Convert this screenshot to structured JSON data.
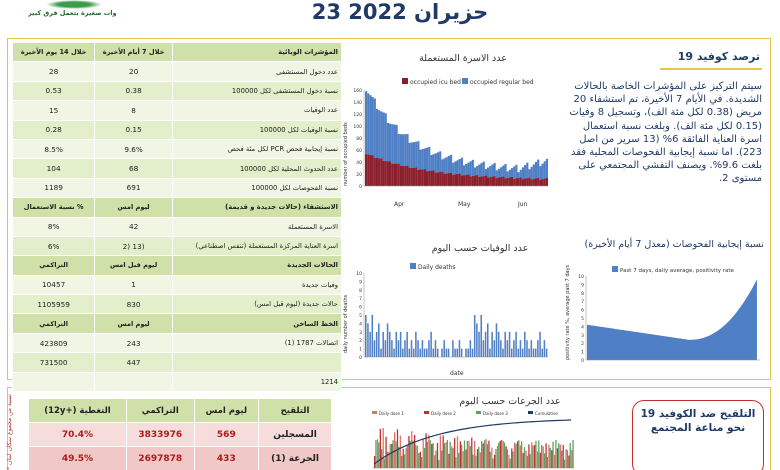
{
  "header": {
    "title": "23 حزيران 2022",
    "logo_text": "خطوات صغيرة بتعمل فرق كبير"
  },
  "indicators_table": {
    "columns": [
      "المؤشرات الوبائية",
      "خلال 7 أيام الأخيرة",
      "خلال 14 يوم الأخيرة"
    ],
    "rows": [
      {
        "label": "عدد دخول المستشفى",
        "v7": "20",
        "v14": "28"
      },
      {
        "label": "نسبة دخول المستشفى لكل 100000",
        "v7": "0.38",
        "v14": "0.53"
      },
      {
        "label": "عدد الوفيات",
        "v7": "8",
        "v14": "15"
      },
      {
        "label": "نسبة الوفيات لكل 100000",
        "v7": "0.15",
        "v14": "0.28"
      },
      {
        "label": "نسبة إيجابية فحص PCR لكل مئة فحص",
        "v7": "9.6%",
        "v14": "8.5%"
      },
      {
        "label": "عدد الحدوث المحلية لكل 100000",
        "v7": "68",
        "v14": "104"
      },
      {
        "label": "نسبة الفحوصات لكل 100000",
        "v7": "691",
        "v14": "1189"
      }
    ],
    "hospital_header": [
      "الاستشفاء (حالات جديدة و قديمة)",
      "ليوم امس",
      "% نسبة الاستعمال"
    ],
    "hospital_rows": [
      {
        "label": "الاسرة المستعملة",
        "a": "42",
        "b": "8%"
      },
      {
        "label": "اسرة العناية المركزة المستعملة (تنفس اصطناعي)",
        "a": "(13 (2",
        "b": "6%"
      }
    ],
    "cases_header": [
      "الحالات الجديدة",
      "ليوم قبل امس",
      "التراكمي"
    ],
    "cases_rows": [
      {
        "label": "وفيات جديدة",
        "a": "1",
        "b": "10457"
      },
      {
        "label": "حالات جديدة (ليوم قبل امس)",
        "a": "830",
        "b": "1105959"
      }
    ],
    "hotline_header": [
      "الخط الساخن",
      "ليوم امس",
      "التراكمي"
    ],
    "hotline_rows": [
      {
        "label": "اتصالات 1787 (1)",
        "a": "243",
        "b": "423809"
      },
      {
        "label": "",
        "a": "447",
        "b": "731500"
      },
      {
        "label": "1214",
        "a": "",
        "b": ""
      }
    ]
  },
  "charts": {
    "beds": {
      "title": "عدد الاسرة المستعملة",
      "ylabel": "number of occupied beds",
      "legend": [
        "occupied icu bed",
        "occupied regular bed"
      ],
      "months": [
        "Apr",
        "May",
        "Jun"
      ],
      "colors": [
        "#8b1e2b",
        "#4f7fc4"
      ],
      "yticks": [
        "0",
        "20",
        "40",
        "60",
        "80",
        "100",
        "120",
        "140",
        "160"
      ]
    },
    "deaths": {
      "title": "عدد الوفيات حسب اليوم",
      "ylabel": "daily number of deaths",
      "xlabel": "date",
      "legend": "Daily deaths",
      "yticks": [
        "0",
        "1",
        "2",
        "3",
        "4",
        "5",
        "6",
        "7",
        "8",
        "9",
        "10"
      ],
      "color": "#4f7fc4"
    },
    "positivity": {
      "title": "نسبة إيجابية الفحوصات (معدل 7 أيام الأخيرة)",
      "ylabel": "positivity rate %, average past 7 days",
      "legend": "Past 7 days, daily average, positivity rate",
      "yticks": [
        "0",
        "1",
        "2",
        "3",
        "4",
        "5",
        "6",
        "7",
        "8",
        "9",
        "10"
      ],
      "color": "#4f7fc4"
    },
    "vaccine": {
      "title": "عدد الجرعات حسب اليوم",
      "legend": [
        "Daily dose 1",
        "Daily dose 2",
        "Daily dose 3",
        "Cumulative"
      ]
    }
  },
  "covid_panel": {
    "title": "ترصد كوفيد 19",
    "text": "سيتم التركيز على المؤشرات الخاصة بالحالات الشديدة. في الأيام 7 الأخيرة، تم استشفاء 20 مريض (0.38 لكل مئة الف)، وتسجيل 8 وفيات (0.15 لكل مئة الف). وبلغت نسبة استعمال اسرة العناية الفائقة 6% (13 سرير من اصل 223). اما نسبة إيجابية الفحوصات المحلية فقد بلغت 9.6%. ويصنف التفشي المجتمعي على مستوى 2."
  },
  "vaccination": {
    "side_text": "* نسبة من مجموع سكان لبنان",
    "header": [
      "التلقيح",
      "ليوم امس",
      "التراكمي",
      "التغطية (+12y)"
    ],
    "rows": [
      {
        "label": "المسجلين",
        "a": "569",
        "b": "3833976",
        "c": "70.4%"
      },
      {
        "label": "الجرعة (1)",
        "a": "433",
        "b": "2697878",
        "c": "49.5%"
      }
    ],
    "panel_text": "التلقيح ضد الكوفيد 19 نحو مناعة المجتمع"
  }
}
